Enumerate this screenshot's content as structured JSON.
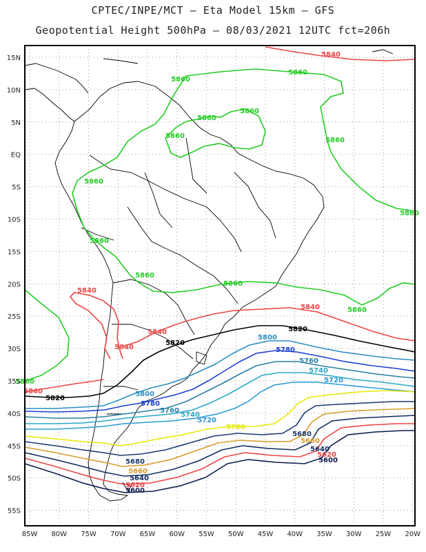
{
  "title_line1": "CPTEC/INPE/MCT –  Eta Model 15km – GFS",
  "title_line2": "Geopotential Height 500hPa – 08/03/2021 12UTC fct=206h",
  "lon_ticks": [
    "85W",
    "80W",
    "75W",
    "70W",
    "65W",
    "60W",
    "55W",
    "50W",
    "45W",
    "40W",
    "35W",
    "30W",
    "25W",
    "20W"
  ],
  "lat_ticks": [
    "15N",
    "10N",
    "5N",
    "EQ",
    "5S",
    "10S",
    "15S",
    "20S",
    "25S",
    "30S",
    "35S",
    "40S",
    "45S",
    "50S",
    "55S"
  ],
  "contours": [
    {
      "value": 5860,
      "color": "#22cc22",
      "labels": [
        "5860",
        "5860",
        "5860",
        "5860",
        "5860",
        "5860",
        "5860",
        "5860",
        "5860",
        "5860",
        "5860",
        "5860",
        "5860"
      ]
    },
    {
      "value": 5840,
      "color": "#ee4444",
      "labels": [
        "5840",
        "5840",
        "5840",
        "5840",
        "5840",
        "5840"
      ]
    },
    {
      "value": 5820,
      "color": "#000000",
      "labels": [
        "5820",
        "5820",
        "5820"
      ]
    },
    {
      "value": 5800,
      "color": "#2a8fc0",
      "labels": [
        "5800",
        "5800"
      ]
    },
    {
      "value": 5780,
      "color": "#1a3fd0",
      "labels": [
        "5780",
        "5780"
      ]
    },
    {
      "value": 5760,
      "color": "#2a7fa8",
      "labels": [
        "5760",
        "5760"
      ]
    },
    {
      "value": 5740,
      "color": "#2aa8c8",
      "labels": [
        "5740",
        "5740"
      ]
    },
    {
      "value": 5720,
      "color": "#2a9ad8",
      "labels": [
        "5720",
        "5720"
      ]
    },
    {
      "value": 5700,
      "color": "#e8e800",
      "labels": [
        "5700"
      ]
    },
    {
      "value": 5680,
      "color": "#1a3a70",
      "labels": [
        "5680",
        "5680"
      ]
    },
    {
      "value": 5660,
      "color": "#d89a2a",
      "labels": [
        "5660",
        "5660"
      ]
    },
    {
      "value": 5640,
      "color": "#102a60",
      "labels": [
        "5640",
        "5640"
      ]
    },
    {
      "value": 5620,
      "color": "#ee4444",
      "labels": [
        "5620",
        "5620"
      ]
    },
    {
      "value": 5600,
      "color": "#0a1a4a",
      "labels": [
        "5600",
        "5600"
      ]
    }
  ]
}
